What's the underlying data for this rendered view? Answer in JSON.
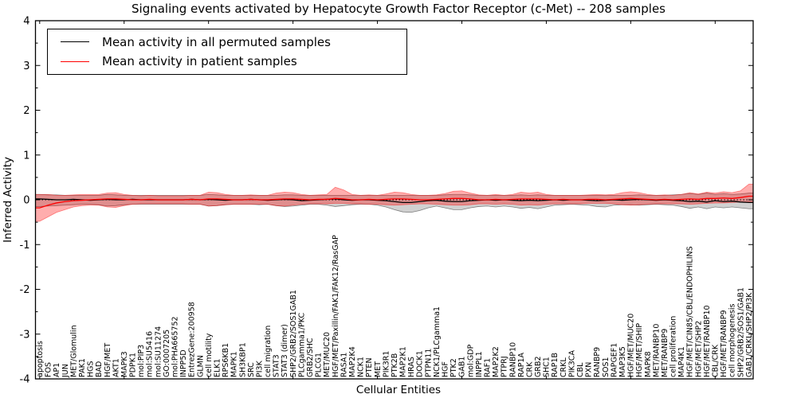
{
  "chart_data": {
    "type": "line",
    "title": "Signaling events activated by Hepatocyte Growth Factor Receptor (c-Met) -- 208 samples",
    "xlabel": "Cellular Entities",
    "ylabel": "Inferred Activity",
    "ylim": [
      -4,
      4
    ],
    "yticks": [
      -4,
      -3,
      -2,
      -1,
      0,
      1,
      2,
      3,
      4
    ],
    "grid": false,
    "legend_position": "upper left",
    "zero_line": "dotted",
    "categories": [
      "apoptosis",
      "FOS",
      "AP1",
      "JUN",
      "MET/Glomulin",
      "PAK1",
      "HGS",
      "BAD",
      "HGF/MET",
      "AKT1",
      "MAPK3",
      "PDPK1",
      "mol:PIP3",
      "mol:SU5416",
      "mol:SU11274",
      "GO:0007205",
      "mol:PHA665752",
      "INPP5D",
      "EntrezGene:200958",
      "GLMN",
      "cell motility",
      "ELK1",
      "RPS6KB1",
      "MAPK1",
      "SH3KBP1",
      "SRC",
      "PI3K",
      "cell migration",
      "STAT3",
      "STAT3 (dimer)",
      "SHP2/GRB2/SOS1GAB1",
      "PLCgamma1/PKC",
      "GRB2/SHC",
      "PLCG1",
      "MET/MUC20",
      "HGF/MET/Paxillin/FAK1/FAK12/RasGAP",
      "RASA1",
      "MAP2K4",
      "NCK1",
      "PTEN",
      "MET",
      "PIK3R1",
      "PTK2B",
      "MAP2K1",
      "HRAS",
      "DOCK1",
      "PTPN11",
      "NCK1/PLCgamma1",
      "HGF",
      "PTK2",
      "GAB1",
      "mol:GDP",
      "INPPL1",
      "RAF1",
      "MAP2K2",
      "PTPRJ",
      "RANBP10",
      "RAP1A",
      "CRK",
      "GRB2",
      "SHC1",
      "RAP1B",
      "CRKL",
      "PIK3CA",
      "CBL",
      "PXN",
      "RANBP9",
      "SOS1",
      "RAPGEF1",
      "MAP3K5",
      "HGF/MET/MUC20",
      "HGF/MET/SHIP",
      "MAPK8",
      "MET/RANBP10",
      "MET/RANBP9",
      "cell proliferation",
      "MAP4K1",
      "HGF/MET/CIN85/CBL/ENDOPHILINS",
      "HGF/MET/SHP2",
      "HGF/MET/RANBP10",
      "CBL/CRK",
      "HGF/MET/RANBP9",
      "cell morphogenesis",
      "SHP2/GRB2/SOS1/GAB1",
      "GAB1/CRKL/SHP2/PI3K"
    ],
    "series": [
      {
        "name": "Mean activity in all permuted samples",
        "color": "#000000",
        "band_color": "#999999",
        "band_opacity": 0.45,
        "mean": [
          0.02,
          0.01,
          0,
          0,
          0.01,
          0,
          -0.01,
          0,
          0.01,
          0,
          0,
          0.01,
          0,
          0,
          0,
          0,
          0,
          0,
          0.01,
          0,
          0.01,
          0,
          -0.01,
          0,
          0,
          0.01,
          0,
          -0.01,
          0,
          0.01,
          0,
          -0.02,
          -0.01,
          0,
          0.01,
          0.02,
          0,
          -0.01,
          0,
          0,
          -0.01,
          -0.02,
          -0.04,
          -0.06,
          -0.06,
          -0.04,
          -0.02,
          -0.01,
          -0.03,
          -0.04,
          -0.04,
          -0.02,
          -0.01,
          0,
          -0.01,
          0,
          -0.01,
          -0.02,
          -0.01,
          -0.02,
          -0.01,
          0,
          -0.01,
          0,
          0,
          -0.01,
          -0.02,
          -0.01,
          0,
          -0.01,
          0,
          0.01,
          0,
          -0.01,
          0,
          -0.01,
          -0.02,
          -0.04,
          -0.03,
          -0.05,
          -0.02,
          -0.04,
          -0.03,
          -0.05,
          -0.06
        ],
        "band_low": [
          -0.15,
          -0.14,
          -0.13,
          -0.12,
          -0.11,
          -0.1,
          -0.1,
          -0.11,
          -0.14,
          -0.13,
          -0.11,
          -0.1,
          -0.1,
          -0.1,
          -0.1,
          -0.1,
          -0.1,
          -0.1,
          -0.1,
          -0.1,
          -0.14,
          -0.13,
          -0.11,
          -0.1,
          -0.1,
          -0.1,
          -0.11,
          -0.1,
          -0.13,
          -0.15,
          -0.14,
          -0.12,
          -0.1,
          -0.1,
          -0.12,
          -0.15,
          -0.13,
          -0.11,
          -0.1,
          -0.1,
          -0.12,
          -0.16,
          -0.22,
          -0.27,
          -0.28,
          -0.24,
          -0.18,
          -0.14,
          -0.18,
          -0.22,
          -0.22,
          -0.18,
          -0.15,
          -0.14,
          -0.16,
          -0.14,
          -0.16,
          -0.19,
          -0.17,
          -0.2,
          -0.16,
          -0.12,
          -0.11,
          -0.1,
          -0.11,
          -0.12,
          -0.15,
          -0.16,
          -0.12,
          -0.11,
          -0.11,
          -0.12,
          -0.11,
          -0.1,
          -0.11,
          -0.12,
          -0.15,
          -0.19,
          -0.16,
          -0.2,
          -0.16,
          -0.18,
          -0.16,
          -0.18,
          -0.2
        ],
        "band_high": [
          0.12,
          0.11,
          0.11,
          0.1,
          0.1,
          0.1,
          0.1,
          0.1,
          0.12,
          0.11,
          0.1,
          0.1,
          0.1,
          0.1,
          0.1,
          0.1,
          0.1,
          0.1,
          0.1,
          0.1,
          0.12,
          0.11,
          0.1,
          0.1,
          0.1,
          0.1,
          0.1,
          0.1,
          0.1,
          0.11,
          0.11,
          0.1,
          0.1,
          0.1,
          0.1,
          0.1,
          0.1,
          0.1,
          0.1,
          0.1,
          0.1,
          0.1,
          0.1,
          0.1,
          0.1,
          0.1,
          0.1,
          0.1,
          0.11,
          0.12,
          0.12,
          0.11,
          0.1,
          0.1,
          0.1,
          0.1,
          0.1,
          0.11,
          0.1,
          0.11,
          0.1,
          0.1,
          0.1,
          0.1,
          0.1,
          0.1,
          0.1,
          0.1,
          0.1,
          0.1,
          0.1,
          0.11,
          0.1,
          0.1,
          0.1,
          0.11,
          0.12,
          0.14,
          0.12,
          0.15,
          0.12,
          0.14,
          0.12,
          0.13,
          0.15
        ]
      },
      {
        "name": "Mean activity in patient samples",
        "color": "#ff0000",
        "band_color": "#ff0000",
        "band_opacity": 0.32,
        "mean": [
          -0.18,
          -0.12,
          -0.07,
          -0.04,
          -0.02,
          -0.01,
          0,
          0.01,
          0.02,
          0.02,
          0.01,
          0,
          0,
          0.01,
          0,
          0,
          0,
          0,
          0.01,
          0,
          0.02,
          0.02,
          0.01,
          0,
          0,
          0.01,
          0,
          0,
          0.01,
          0.02,
          0.02,
          0.01,
          0,
          0.01,
          0.01,
          0.03,
          0.02,
          0,
          0,
          0.01,
          0,
          0.01,
          0.02,
          0.02,
          0.01,
          0,
          0,
          0.01,
          0.02,
          0.03,
          0.03,
          0.02,
          0,
          0,
          0.01,
          0,
          0.01,
          0.02,
          0.02,
          0.02,
          0.01,
          0,
          0.01,
          0,
          0,
          0.01,
          0.01,
          0,
          0.01,
          0.02,
          0.03,
          0.02,
          0.01,
          0,
          0.01,
          0,
          0.01,
          0.02,
          0.01,
          0.03,
          0.03,
          0.04,
          0.03,
          0.05,
          0.08
        ],
        "band_low": [
          -0.48,
          -0.38,
          -0.28,
          -0.22,
          -0.16,
          -0.13,
          -0.12,
          -0.12,
          -0.16,
          -0.17,
          -0.13,
          -0.1,
          -0.09,
          -0.09,
          -0.09,
          -0.09,
          -0.09,
          -0.09,
          -0.1,
          -0.1,
          -0.14,
          -0.13,
          -0.11,
          -0.1,
          -0.1,
          -0.1,
          -0.1,
          -0.1,
          -0.13,
          -0.14,
          -0.12,
          -0.1,
          -0.09,
          -0.09,
          -0.09,
          -0.08,
          -0.08,
          -0.09,
          -0.09,
          -0.1,
          -0.1,
          -0.11,
          -0.12,
          -0.11,
          -0.1,
          -0.09,
          -0.09,
          -0.1,
          -0.11,
          -0.12,
          -0.12,
          -0.11,
          -0.09,
          -0.09,
          -0.1,
          -0.09,
          -0.1,
          -0.12,
          -0.11,
          -0.12,
          -0.1,
          -0.09,
          -0.09,
          -0.09,
          -0.09,
          -0.08,
          -0.08,
          -0.08,
          -0.09,
          -0.11,
          -0.12,
          -0.11,
          -0.1,
          -0.09,
          -0.09,
          -0.09,
          -0.09,
          -0.1,
          -0.09,
          -0.08,
          -0.07,
          -0.07,
          -0.06,
          -0.05,
          -0.05
        ],
        "band_high": [
          0.12,
          0.12,
          0.1,
          0.1,
          0.11,
          0.12,
          0.12,
          0.12,
          0.15,
          0.16,
          0.12,
          0.1,
          0.09,
          0.1,
          0.09,
          0.09,
          0.09,
          0.09,
          0.1,
          0.1,
          0.17,
          0.16,
          0.12,
          0.1,
          0.1,
          0.11,
          0.1,
          0.1,
          0.15,
          0.17,
          0.16,
          0.12,
          0.1,
          0.11,
          0.12,
          0.28,
          0.22,
          0.12,
          0.1,
          0.11,
          0.1,
          0.13,
          0.17,
          0.16,
          0.12,
          0.1,
          0.1,
          0.11,
          0.14,
          0.19,
          0.2,
          0.15,
          0.11,
          0.1,
          0.12,
          0.1,
          0.12,
          0.17,
          0.15,
          0.17,
          0.12,
          0.1,
          0.1,
          0.1,
          0.1,
          0.11,
          0.12,
          0.11,
          0.12,
          0.16,
          0.18,
          0.16,
          0.12,
          0.1,
          0.11,
          0.1,
          0.12,
          0.16,
          0.13,
          0.17,
          0.15,
          0.18,
          0.16,
          0.2,
          0.35
        ]
      }
    ]
  }
}
